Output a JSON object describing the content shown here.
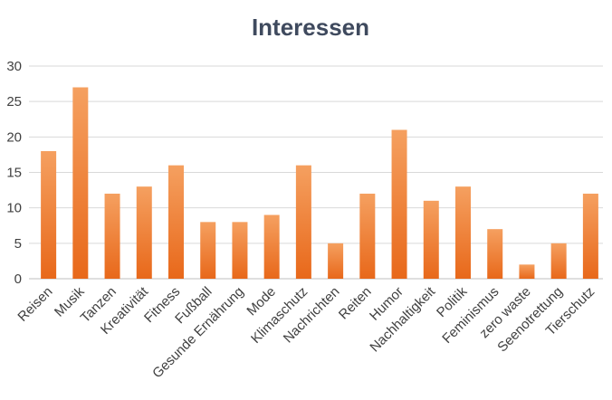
{
  "chart_data": {
    "type": "bar",
    "title": "Interessen",
    "categories": [
      "Reisen",
      "Musik",
      "Tanzen",
      "Kreativität",
      "Fitness",
      "Fußball",
      "Gesunde Ernährung",
      "Mode",
      "Klimaschutz",
      "Nachrichten",
      "Reiten",
      "Humor",
      "Nachhaltigkeit",
      "Politik",
      "Feminismus",
      "zero waste",
      "Seenotrettung",
      "Tierschutz"
    ],
    "values": [
      18,
      27,
      12,
      13,
      16,
      8,
      8,
      9,
      16,
      5,
      12,
      21,
      11,
      13,
      7,
      2,
      5,
      12
    ],
    "ylim": [
      0,
      30
    ],
    "yticks": [
      0,
      5,
      10,
      15,
      20,
      25,
      30
    ],
    "grid": true,
    "legend": "none",
    "colors": {
      "bar_top": "#f5a060",
      "bar_bottom": "#e8681a"
    }
  }
}
